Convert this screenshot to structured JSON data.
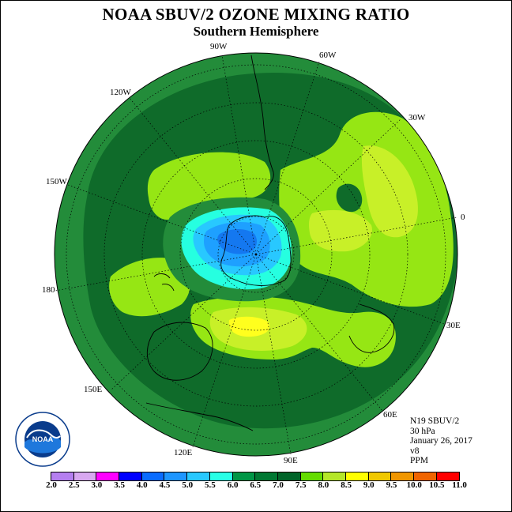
{
  "title": "NOAA SBUV/2 OZONE MIXING RATIO",
  "subtitle": "Southern Hemisphere",
  "longitude_labels": {
    "lon_90w": "90W",
    "lon_60w": "60W",
    "lon_30w": "30W",
    "lon_120w": "120W",
    "lon_150w": "150W",
    "lon_0": "0",
    "lon_180": "180",
    "lon_30e": "30E",
    "lon_150e": "150E",
    "lon_60e": "60E",
    "lon_120e": "120E",
    "lon_90e": "90E"
  },
  "metadata": {
    "satellite": "N19 SBUV/2",
    "level": "30 hPa",
    "date": "January 26, 2017",
    "version": "v8",
    "units": "PPM"
  },
  "colorbar": {
    "colors": [
      "#b57ff0",
      "#d8a8f0",
      "#ff00ff",
      "#cc00cc",
      "#0000ff",
      "#0a6cff",
      "#1e96ff",
      "#28c8ff",
      "#28ffe6",
      "#009646",
      "#007832",
      "#006428",
      "#64dc00",
      "#b4e628",
      "#e6ff28",
      "#ffff00",
      "#f0c800",
      "#f09600",
      "#f06400",
      "#ff0000",
      "#b40000",
      "#8b5a3c"
    ],
    "labels": [
      "2.0",
      "2.5",
      "3.0",
      "3.5",
      "4.0",
      "4.5",
      "5.0",
      "5.5",
      "6.0",
      "6.5",
      "7.0",
      "7.5",
      "8.0",
      "8.5",
      "9.0",
      "9.5",
      "10.0",
      "10.5",
      "11.0"
    ]
  },
  "map_colors": {
    "level_6_5": "#238c3a",
    "level_7_0": "#0f6b2a",
    "level_7_5": "#96e614",
    "level_8_0": "#c8f028",
    "level_8_5": "#ffff1e",
    "level_6_0": "#26ffe0",
    "level_5_5": "#28c8ff",
    "level_5_0": "#1ea0ff",
    "level_4_5": "#1478f0"
  },
  "logo_text": "NOAA"
}
